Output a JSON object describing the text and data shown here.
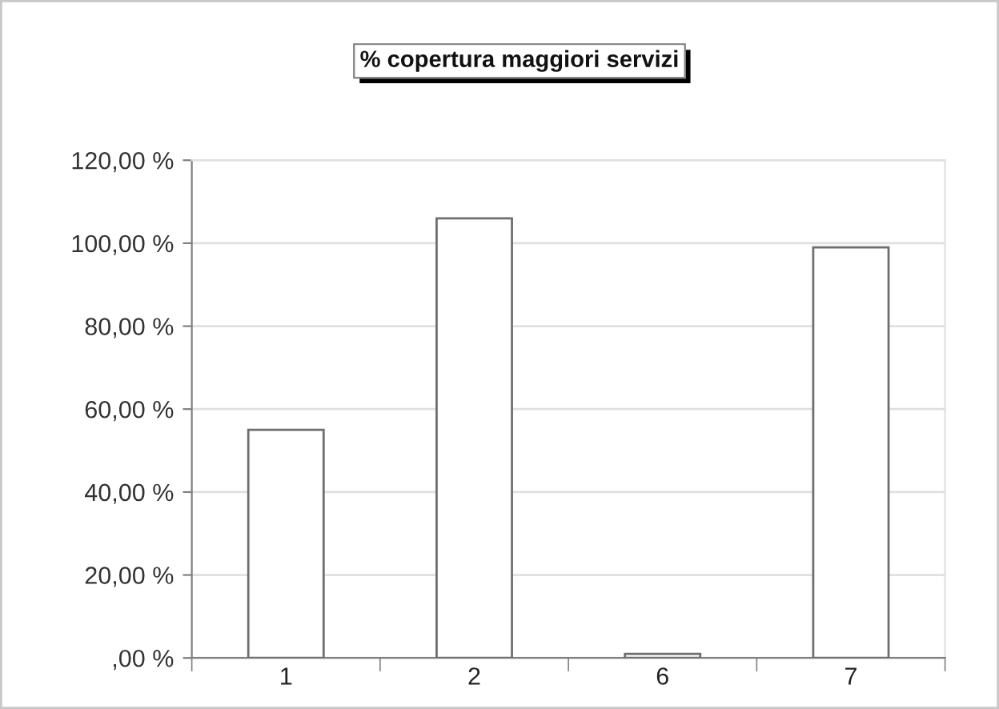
{
  "chart_data": {
    "type": "bar",
    "title": "% copertura maggiori servizi",
    "categories": [
      "1",
      "2",
      "6",
      "7"
    ],
    "values": [
      55,
      106,
      1,
      99
    ],
    "color": "#ffffff",
    "ylim": [
      0,
      120
    ],
    "yticks": [
      {
        "value": 0,
        "label": ",00 %"
      },
      {
        "value": 20,
        "label": "20,00 %"
      },
      {
        "value": 40,
        "label": "40,00 %"
      },
      {
        "value": 60,
        "label": "60,00 %"
      },
      {
        "value": 80,
        "label": "80,00 %"
      },
      {
        "value": 100,
        "label": "100,00 %"
      },
      {
        "value": 120,
        "label": "120,00 %"
      }
    ],
    "grid": "y"
  }
}
